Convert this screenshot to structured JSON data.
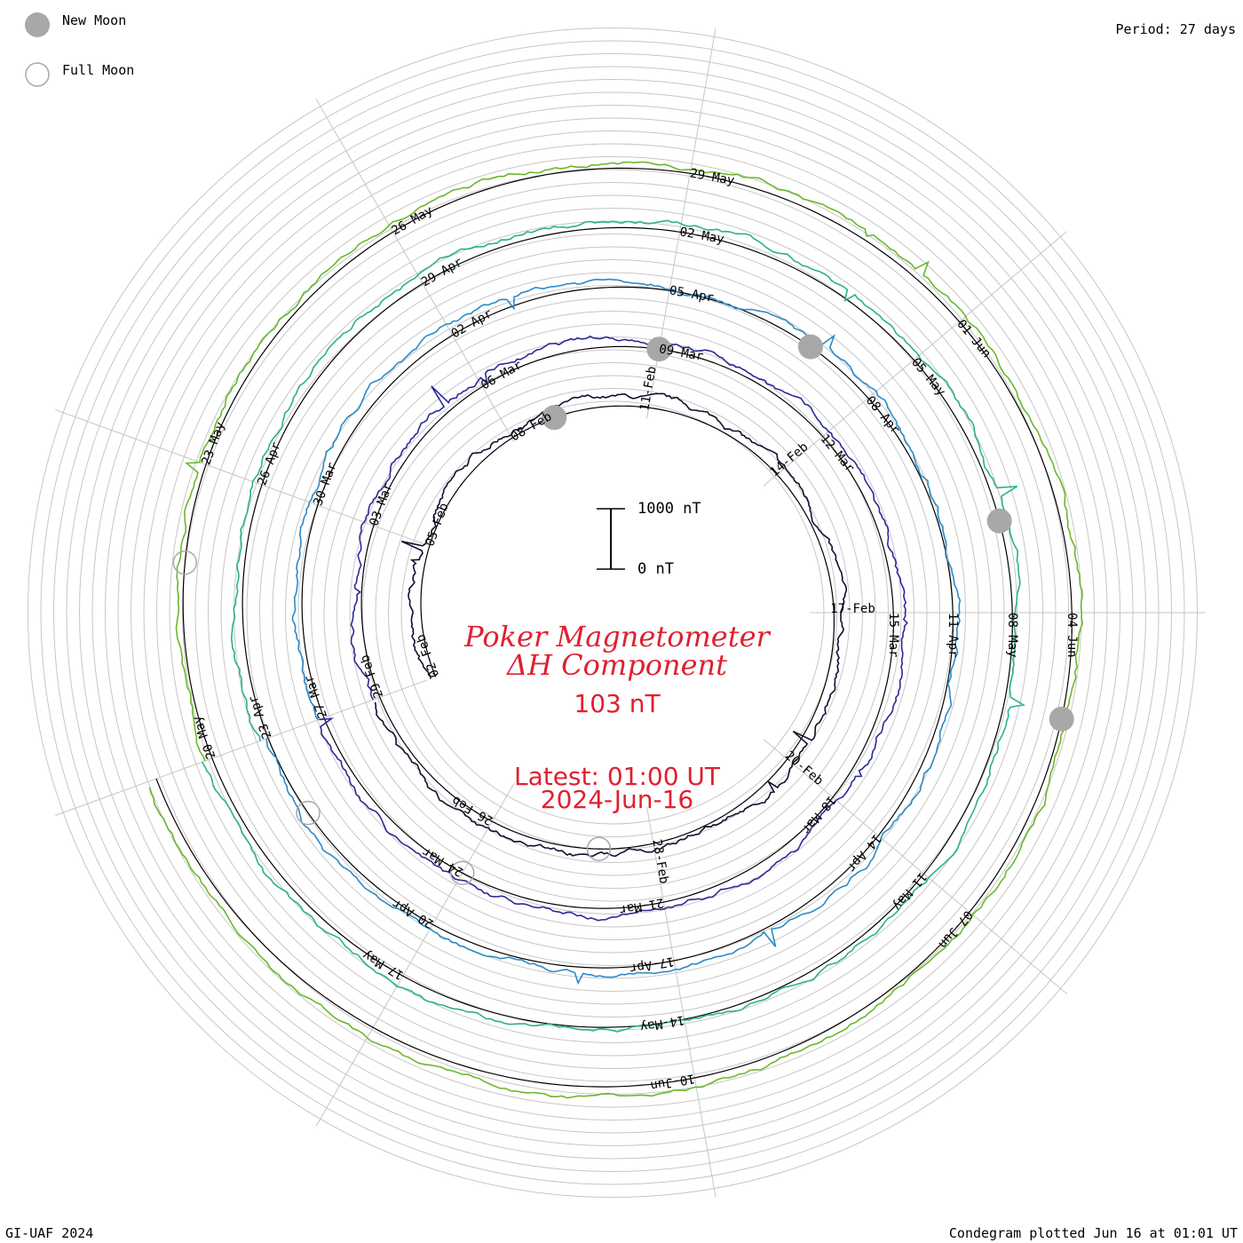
{
  "legend": {
    "new_moon_label": "New Moon",
    "full_moon_label": "Full Moon",
    "new_moon_color": "#a8a8a8",
    "full_moon_color": "#a8a8a8"
  },
  "header": {
    "period": "Period: 27 days"
  },
  "footer": {
    "credit": "GI-UAF 2024",
    "plotted": "Condegram plotted Jun 16 at 01:01 UT"
  },
  "title": {
    "line1": "Poker Magnetometer",
    "line2": "ΔH Component",
    "value": "103 nT",
    "latest": "Latest: 01:00 UT",
    "date": "2024-Jun-16",
    "color": "#e02030"
  },
  "scale_bar": {
    "top_label": "1000 nT",
    "bottom_label": "0 nT"
  },
  "chart_data": {
    "type": "line",
    "layout": "spiral condegram",
    "period_days": 27,
    "date_labels": [
      "02-Feb",
      "05-Feb",
      "08-Feb",
      "11-Feb",
      "14-Feb",
      "17-Feb",
      "20-Feb",
      "23-Feb",
      "26-Feb",
      "29-Feb",
      "03-Mar",
      "06-Mar",
      "09-Mar",
      "12-Mar",
      "15-Mar",
      "18-Mar",
      "21-Mar",
      "24-Mar",
      "27-Mar",
      "30-Mar",
      "02-Apr",
      "05-Apr",
      "08-Apr",
      "11-Apr",
      "14-Apr",
      "17-Apr",
      "20-Apr",
      "23-Apr",
      "26-Apr",
      "29-Apr",
      "02-May",
      "05-May",
      "08-May",
      "11-May",
      "14-May",
      "17-May",
      "20-May",
      "23-May",
      "26-May",
      "29-May",
      "01-Jun",
      "04-Jun",
      "07-Jun",
      "10-Jun"
    ],
    "y_scale_nT": [
      0,
      1000
    ],
    "new_moon_dates": [
      "09-Feb",
      "10-Mar",
      "08-Apr",
      "08-May",
      "06-Jun"
    ],
    "full_moon_dates": [
      "24-Feb",
      "25-Mar",
      "23-Apr",
      "23-May"
    ],
    "turn_colors": [
      "#101030",
      "#2a2a9a",
      "#2a8ac8",
      "#2ab090",
      "#6ab82a",
      "#a8b820",
      "#c08a10",
      "#c02010"
    ]
  }
}
